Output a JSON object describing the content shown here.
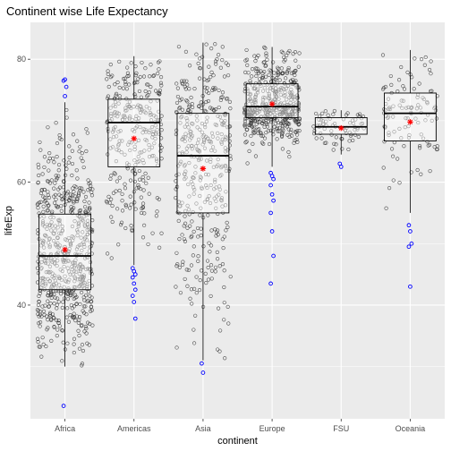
{
  "chart_data": {
    "type": "boxplot",
    "title": "Continent wise Life Expectancy",
    "xlabel": "continent",
    "ylabel": "lifeExp",
    "ylim": [
      21.5,
      86
    ],
    "yticks": [
      40,
      60,
      80
    ],
    "grid": true,
    "categories": [
      "Africa",
      "Americas",
      "Asia",
      "Europe",
      "FSU",
      "Oceania"
    ],
    "boxes": [
      {
        "category": "Africa",
        "min": 30.0,
        "q1": 42.5,
        "median": 48.0,
        "q3": 54.8,
        "max": 73.0,
        "mean": 49.0
      },
      {
        "category": "Americas",
        "min": 46.5,
        "q1": 62.5,
        "median": 69.7,
        "q3": 73.5,
        "max": 80.5,
        "mean": 67.1
      },
      {
        "category": "Asia",
        "min": 31.0,
        "q1": 55.0,
        "median": 64.3,
        "q3": 71.2,
        "max": 82.7,
        "mean": 62.2
      },
      {
        "category": "Europe",
        "min": 62.5,
        "q1": 70.5,
        "median": 72.3,
        "q3": 76.0,
        "max": 82.0,
        "mean": 72.7
      },
      {
        "category": "FSU",
        "min": 64.5,
        "q1": 67.8,
        "median": 69.0,
        "q3": 70.5,
        "max": 71.7,
        "mean": 68.8
      },
      {
        "category": "Oceania",
        "min": 55.0,
        "q1": 66.7,
        "median": 71.2,
        "q3": 74.5,
        "max": 81.5,
        "mean": 69.8
      }
    ],
    "outliers": {
      "Africa": [
        23.6,
        74.0,
        75.5,
        76.5,
        76.7
      ],
      "Americas": [
        46.0,
        45.5,
        45.0,
        44.5,
        43.5,
        42.5,
        41.5,
        40.5,
        37.8
      ],
      "Asia": [
        30.5,
        29.0
      ],
      "Europe": [
        61.5,
        61.0,
        60.5,
        59.5,
        58.0,
        57.0,
        55.0,
        52.0,
        48.0,
        43.5
      ],
      "FSU": [
        63.0,
        62.5
      ],
      "Oceania": [
        53.0,
        52.0,
        50.0,
        49.5,
        43.0
      ]
    },
    "colors": {
      "panel": "#ebebeb",
      "grid": "#ffffff",
      "points": "#333333",
      "outlier": "#0000ff",
      "mean": "#ff0000",
      "box_line": "#000000",
      "box_fill": "#ffffff"
    }
  }
}
